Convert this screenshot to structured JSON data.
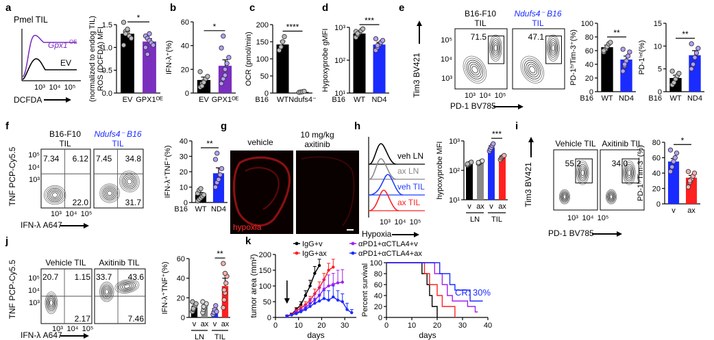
{
  "panel_labels": [
    "a",
    "b",
    "c",
    "d",
    "e",
    "f",
    "g",
    "h",
    "i",
    "j",
    "k"
  ],
  "a": {
    "title": "Pmel TIL",
    "hist_labels": {
      "oe": "Gpx1",
      "oe_sup": "OE",
      "ev": "EV"
    },
    "hist_ticks": [
      "10³",
      "10⁴",
      "10⁵"
    ],
    "hist_xlabel": "DCFDA",
    "colors": {
      "oe": "#7B2FBE",
      "ev": "#000000"
    }
  },
  "e": {
    "ylabel": "Tim3 BV421",
    "xlabel": "PD-1 BV785",
    "plot_titles": [
      "B16-F10 TIL",
      "Ndufs4⁻ B16 TIL"
    ],
    "gate_values": [
      "71.5",
      "47.1"
    ],
    "x_ticks": [
      "10³",
      "10⁴",
      "10⁵"
    ],
    "y_ticks": [
      "10⁵",
      "10⁴",
      "10³"
    ]
  },
  "f": {
    "ylabel": "TNF PCP-Cy5.5",
    "xlabel": "IFN-λ A647",
    "plot_titles": [
      "B16-F10 TIL",
      "Ndufs4⁻ B16 TIL"
    ],
    "quadrants": [
      [
        "7.34",
        "6.12",
        "22.0"
      ],
      [
        "7.45",
        "34.8",
        "31.7"
      ]
    ],
    "x_ticks": [
      "10³",
      "10⁴",
      "10⁵"
    ],
    "y_ticks": [
      "10⁵",
      "10⁴",
      "10³"
    ]
  },
  "g": {
    "titles": [
      "vehicle",
      "10 mg/kg axitinib"
    ],
    "label": "hypoxia"
  },
  "h": {
    "hist_labels": [
      "veh LN",
      "ax LN",
      "veh TIL",
      "ax TIL"
    ],
    "hist_colors": [
      "#000000",
      "#888888",
      "#1f3fff",
      "#ff2020"
    ],
    "hist_xlabel": "Hypoxia",
    "hist_ticks": [
      "10³",
      "10⁴",
      "10⁵"
    ]
  },
  "i": {
    "ylabel": "Tim3 BV421",
    "xlabel": "PD-1 BV785",
    "plot_titles": [
      "Vehicle TIL",
      "Axitinib TIL"
    ],
    "gate_values": [
      "55.2",
      "34.0"
    ],
    "x_ticks": [
      "10³",
      "10⁴",
      "10⁵"
    ],
    "y_ticks": [
      "10⁵",
      "10⁴",
      "10³"
    ]
  },
  "j": {
    "ylabel": "TNF PCP-Cy5.5",
    "xlabel": "IFN-λ A647",
    "plot_titles": [
      "Vehicle TIL",
      "Axitinib TIL"
    ],
    "quadrants": [
      [
        "20.7",
        "1.15",
        "2.17"
      ],
      [
        "33.7",
        "43.6",
        "7.46"
      ]
    ],
    "x_ticks": [
      "10³",
      "10⁴",
      "10⁵"
    ],
    "y_ticks": [
      "10⁵",
      "10⁴",
      "10³"
    ]
  },
  "chart_data": [
    {
      "id": "a_bar",
      "type": "bar",
      "categories": [
        "EV",
        "GPX1ᴼᴱ"
      ],
      "values": [
        1.3,
        1.13
      ],
      "errors": [
        0.06,
        0.06
      ],
      "colors": [
        "#000000",
        "#7B2FBE"
      ],
      "ylabel_lines": [
        "ROS (DCFDA) MFI",
        "(normalized to endog TIL)"
      ],
      "ylim": [
        0.0,
        1.5
      ],
      "yticks": [
        "0.0",
        "0.5",
        "1.0",
        "1.5"
      ],
      "yticks_v": [
        0,
        0.5,
        1.0,
        1.5
      ],
      "dots": [
        [
          1.55,
          1.35,
          1.3,
          1.25,
          1.2,
          1.05,
          1.3,
          1.4
        ],
        [
          1.25,
          1.2,
          1.15,
          1.1,
          1.05,
          1.0,
          0.85,
          1.3
        ]
      ],
      "sig": "*"
    },
    {
      "id": "b_bar",
      "type": "bar",
      "categories": [
        "EV",
        "GPX1ᴼᴱ"
      ],
      "values": [
        11,
        23
      ],
      "errors": [
        2.5,
        5
      ],
      "colors": [
        "#000000",
        "#7B2FBE"
      ],
      "ylabel_lines": [
        "IFN-λ⁺(%)"
      ],
      "ylim": [
        0,
        60
      ],
      "yticks": [
        "0",
        "20",
        "40",
        "60"
      ],
      "yticks_v": [
        0,
        20,
        40,
        60
      ],
      "dots": [
        [
          5,
          8,
          10,
          12,
          14,
          18,
          6,
          9
        ],
        [
          8,
          12,
          20,
          25,
          30,
          38,
          48,
          15
        ]
      ],
      "sig": "*"
    },
    {
      "id": "c_bar",
      "type": "bar",
      "categories": [
        "WT",
        "Ndufs4⁻"
      ],
      "values": [
        142,
        3
      ],
      "errors": [
        10,
        1
      ],
      "colors": [
        "#000000",
        "#000000"
      ],
      "ylabel_lines": [
        "OCR (pmol/min)"
      ],
      "ylim": [
        0,
        200
      ],
      "yticks": [
        "0",
        "50",
        "100",
        "150",
        "200"
      ],
      "yticks_v": [
        0,
        50,
        100,
        150,
        200
      ],
      "dots": [
        [
          125,
          135,
          150,
          165
        ],
        [
          2,
          3,
          4,
          5
        ]
      ],
      "group_label": "B16",
      "sig": "****"
    },
    {
      "id": "d_bar",
      "type": "bar",
      "log": true,
      "categories": [
        "WT",
        "ND4"
      ],
      "values": [
        650,
        300
      ],
      "errors": [
        80,
        50
      ],
      "colors": [
        "#000000",
        "#1a2bff"
      ],
      "ylabel_lines": [
        "Hypoxyprobe gMFI"
      ],
      "ylim": [
        10,
        1000
      ],
      "yticks": [
        "10¹",
        "10²",
        "10³"
      ],
      "yticks_v": [
        10,
        100,
        1000
      ],
      "dots": [
        [
          500,
          600,
          700,
          800,
          900,
          750,
          650
        ],
        [
          200,
          250,
          300,
          350,
          400,
          450,
          280
        ]
      ],
      "group_label": "B16",
      "sig": "***"
    },
    {
      "id": "e_bar1",
      "type": "bar",
      "categories": [
        "WT",
        "ND4"
      ],
      "values": [
        65,
        47
      ],
      "errors": [
        3,
        5
      ],
      "colors": [
        "#000000",
        "#1a2bff"
      ],
      "ylabel_lines": [
        "PD-1ʰⁱTim-3⁺(%)"
      ],
      "ylim": [
        0,
        100
      ],
      "yticks": [
        "0",
        "20",
        "40",
        "60",
        "80",
        "100"
      ],
      "yticks_v": [
        0,
        20,
        40,
        60,
        80,
        100
      ],
      "dots": [
        [
          58,
          62,
          66,
          70,
          72,
          60
        ],
        [
          30,
          38,
          45,
          52,
          58,
          62,
          40
        ]
      ],
      "group_label": "B16",
      "sig": "**"
    },
    {
      "id": "e_bar2",
      "type": "bar",
      "categories": [
        "WT",
        "ND4"
      ],
      "values": [
        3,
        8
      ],
      "errors": [
        0.6,
        1
      ],
      "colors": [
        "#000000",
        "#1a2bff"
      ],
      "ylabel_lines": [
        "PD-1ⁱⁿᵗ(%)"
      ],
      "ylim": [
        0,
        15
      ],
      "yticks": [
        "0",
        "5",
        "10",
        "15"
      ],
      "yticks_v": [
        0,
        5,
        10,
        15
      ],
      "dots": [
        [
          1.5,
          2,
          2.8,
          3.5,
          4,
          4.5
        ],
        [
          5,
          6,
          7.5,
          8.5,
          9.5,
          10.5
        ]
      ],
      "group_label": "B16",
      "sig": "**"
    },
    {
      "id": "f_bar",
      "type": "bar",
      "categories": [
        "WT",
        "ND4"
      ],
      "values": [
        5,
        19
      ],
      "errors": [
        1.5,
        3.5
      ],
      "colors": [
        "#000000",
        "#1a2bff"
      ],
      "ylabel_lines": [
        "IFN-λ⁺TNF⁺(%)"
      ],
      "ylim": [
        0,
        40
      ],
      "yticks": [
        "0",
        "10",
        "20",
        "30",
        "40"
      ],
      "yticks_v": [
        0,
        10,
        20,
        30,
        40
      ],
      "dots": [
        [
          1,
          2,
          3,
          4,
          5,
          6,
          8,
          9
        ],
        [
          10,
          13,
          15,
          18,
          22,
          28,
          32
        ]
      ],
      "group_label": "B16",
      "sig": "**"
    },
    {
      "id": "h_bar",
      "type": "bar",
      "log": true,
      "categories": [
        "v",
        "ax",
        "v",
        "ax"
      ],
      "values": [
        170,
        190,
        600,
        280
      ],
      "errors": [
        15,
        15,
        80,
        30
      ],
      "colors": [
        "#000000",
        "#888888",
        "#1a2bff",
        "#ff2020"
      ],
      "ylabel_lines": [
        "hypoxyprobe MFI"
      ],
      "ylim": [
        10,
        1000
      ],
      "yticks": [
        "10¹",
        "10²",
        "10³"
      ],
      "yticks_v": [
        10,
        100,
        1000
      ],
      "dots": [
        [
          150,
          160,
          170,
          180,
          190,
          165
        ],
        [
          170,
          180,
          190,
          200,
          210,
          185
        ],
        [
          450,
          520,
          600,
          700,
          800
        ],
        [
          230,
          260,
          280,
          300,
          320
        ]
      ],
      "groups": [
        "LN",
        "TIL"
      ],
      "sig": "***"
    },
    {
      "id": "i_bar",
      "type": "bar",
      "categories": [
        "v",
        "ax"
      ],
      "values": [
        55,
        34
      ],
      "errors": [
        4,
        3
      ],
      "colors": [
        "#1a2bff",
        "#ff2020"
      ],
      "ylabel_lines": [
        "PD-1ʰⁱTim-3⁺(%)"
      ],
      "ylim": [
        0,
        80
      ],
      "yticks": [
        "0",
        "20",
        "40",
        "60",
        "80"
      ],
      "yticks_v": [
        0,
        20,
        40,
        60,
        80
      ],
      "dots": [
        [
          42,
          48,
          55,
          60,
          66,
          70
        ],
        [
          22,
          28,
          32,
          36,
          40,
          42,
          30
        ]
      ],
      "sig": "*"
    },
    {
      "id": "j_bar",
      "type": "bar",
      "categories": [
        "v",
        "ax",
        "v",
        "ax"
      ],
      "values": [
        10,
        10,
        7,
        32
      ],
      "errors": [
        1.5,
        1.5,
        2,
        8
      ],
      "colors": [
        "#000000",
        "#888888",
        "#1a2bff",
        "#ff2020"
      ],
      "ylabel_lines": [
        "IFN-λ⁺TNF⁺(%)"
      ],
      "ylim": [
        0,
        60
      ],
      "yticks": [
        "0",
        "20",
        "40",
        "60"
      ],
      "yticks_v": [
        0,
        20,
        40,
        60
      ],
      "dots": [
        [
          6,
          8,
          10,
          12,
          14,
          16,
          9
        ],
        [
          5,
          8,
          10,
          12,
          14,
          16,
          11
        ],
        [
          3,
          5,
          8,
          12,
          6
        ],
        [
          10,
          18,
          25,
          35,
          42,
          55,
          28,
          45
        ]
      ],
      "groups": [
        "LN",
        "TIL"
      ],
      "sig": "**"
    },
    {
      "id": "k_growth",
      "type": "line",
      "xlabel": "days",
      "ylabel_lines": [
        "tumor area  (mm²)"
      ],
      "xlim": [
        0,
        35
      ],
      "ylim": [
        0,
        200
      ],
      "xticks": [
        "0",
        "10",
        "20",
        "30"
      ],
      "xticks_v": [
        0,
        10,
        20,
        30
      ],
      "yticks": [
        "0",
        "50",
        "100",
        "150",
        "200"
      ],
      "yticks_v": [
        0,
        50,
        100,
        150,
        200
      ],
      "series": [
        {
          "name": "IgG+v",
          "color": "#000000",
          "x": [
            5,
            7,
            9,
            11,
            13,
            15,
            17,
            19
          ],
          "y": [
            5,
            10,
            25,
            40,
            70,
            100,
            140,
            165
          ],
          "err": [
            2,
            4,
            6,
            10,
            15,
            18,
            22,
            20
          ]
        },
        {
          "name": "IgG+ax",
          "color": "#ff2020",
          "x": [
            5,
            7,
            9,
            11,
            13,
            15,
            17,
            19,
            21,
            23,
            25
          ],
          "y": [
            5,
            10,
            20,
            30,
            40,
            55,
            75,
            95,
            120,
            150,
            160
          ],
          "err": [
            2,
            3,
            5,
            7,
            10,
            12,
            15,
            18,
            20,
            22,
            25
          ]
        },
        {
          "name": "αPD1+αCTLA4+v",
          "color": "#a020f0",
          "x": [
            5,
            7,
            9,
            11,
            13,
            15,
            17,
            19,
            21,
            23,
            25,
            27,
            29
          ],
          "y": [
            4,
            8,
            15,
            22,
            30,
            45,
            55,
            70,
            90,
            100,
            105,
            110,
            112
          ],
          "err": [
            2,
            3,
            5,
            8,
            10,
            15,
            20,
            25,
            30,
            35,
            35,
            40,
            40
          ]
        },
        {
          "name": "αPD1+αCTLA4+ax",
          "color": "#1a2bff",
          "x": [
            5,
            7,
            9,
            11,
            13,
            15,
            17,
            19,
            21,
            23,
            25,
            27,
            29,
            31,
            33
          ],
          "y": [
            4,
            8,
            12,
            18,
            25,
            35,
            45,
            52,
            60,
            55,
            65,
            55,
            50,
            25,
            15
          ],
          "err": [
            2,
            3,
            4,
            6,
            8,
            10,
            15,
            20,
            25,
            30,
            35,
            30,
            25,
            20,
            10
          ]
        }
      ],
      "arrow_day": 5
    },
    {
      "id": "k_survival",
      "type": "line",
      "xlabel": "days",
      "ylabel_lines": [
        "Percent survival"
      ],
      "xlim": [
        0,
        40
      ],
      "ylim": [
        0,
        100
      ],
      "xticks": [
        "0",
        "10",
        "20",
        "30",
        "40"
      ],
      "xticks_v": [
        0,
        10,
        20,
        30,
        40
      ],
      "yticks": [
        "0",
        "20",
        "40",
        "60",
        "80",
        "100"
      ],
      "yticks_v": [
        0,
        20,
        40,
        60,
        80,
        100
      ],
      "series": [
        {
          "name": "IgG+v",
          "color": "#000000",
          "steps": [
            [
              0,
              100
            ],
            [
              14,
              100
            ],
            [
              14,
              80
            ],
            [
              16,
              80
            ],
            [
              16,
              60
            ],
            [
              17,
              60
            ],
            [
              17,
              40
            ],
            [
              18,
              40
            ],
            [
              18,
              20
            ],
            [
              20,
              20
            ],
            [
              20,
              0
            ]
          ]
        },
        {
          "name": "IgG+ax",
          "color": "#ff2020",
          "steps": [
            [
              0,
              100
            ],
            [
              15,
              100
            ],
            [
              15,
              80
            ],
            [
              17,
              80
            ],
            [
              17,
              60
            ],
            [
              20,
              60
            ],
            [
              20,
              40
            ],
            [
              22,
              40
            ],
            [
              22,
              20
            ],
            [
              27,
              20
            ],
            [
              27,
              0
            ]
          ]
        },
        {
          "name": "αPD1+αCTLA4+v",
          "color": "#a020f0",
          "steps": [
            [
              0,
              100
            ],
            [
              19,
              100
            ],
            [
              19,
              80
            ],
            [
              22,
              80
            ],
            [
              22,
              60
            ],
            [
              24,
              60
            ],
            [
              24,
              40
            ],
            [
              26,
              40
            ],
            [
              26,
              30
            ],
            [
              32,
              30
            ],
            [
              32,
              20
            ],
            [
              35,
              20
            ],
            [
              35,
              10
            ],
            [
              36,
              10
            ]
          ]
        },
        {
          "name": "αPD1+αCTLA4+ax",
          "color": "#1a2bff",
          "steps": [
            [
              0,
              100
            ],
            [
              21,
              100
            ],
            [
              21,
              80
            ],
            [
              25,
              80
            ],
            [
              25,
              60
            ],
            [
              27,
              60
            ],
            [
              27,
              50
            ],
            [
              33,
              50
            ],
            [
              33,
              30
            ],
            [
              38,
              30
            ]
          ]
        }
      ],
      "annotation": "CR: 30%"
    }
  ]
}
